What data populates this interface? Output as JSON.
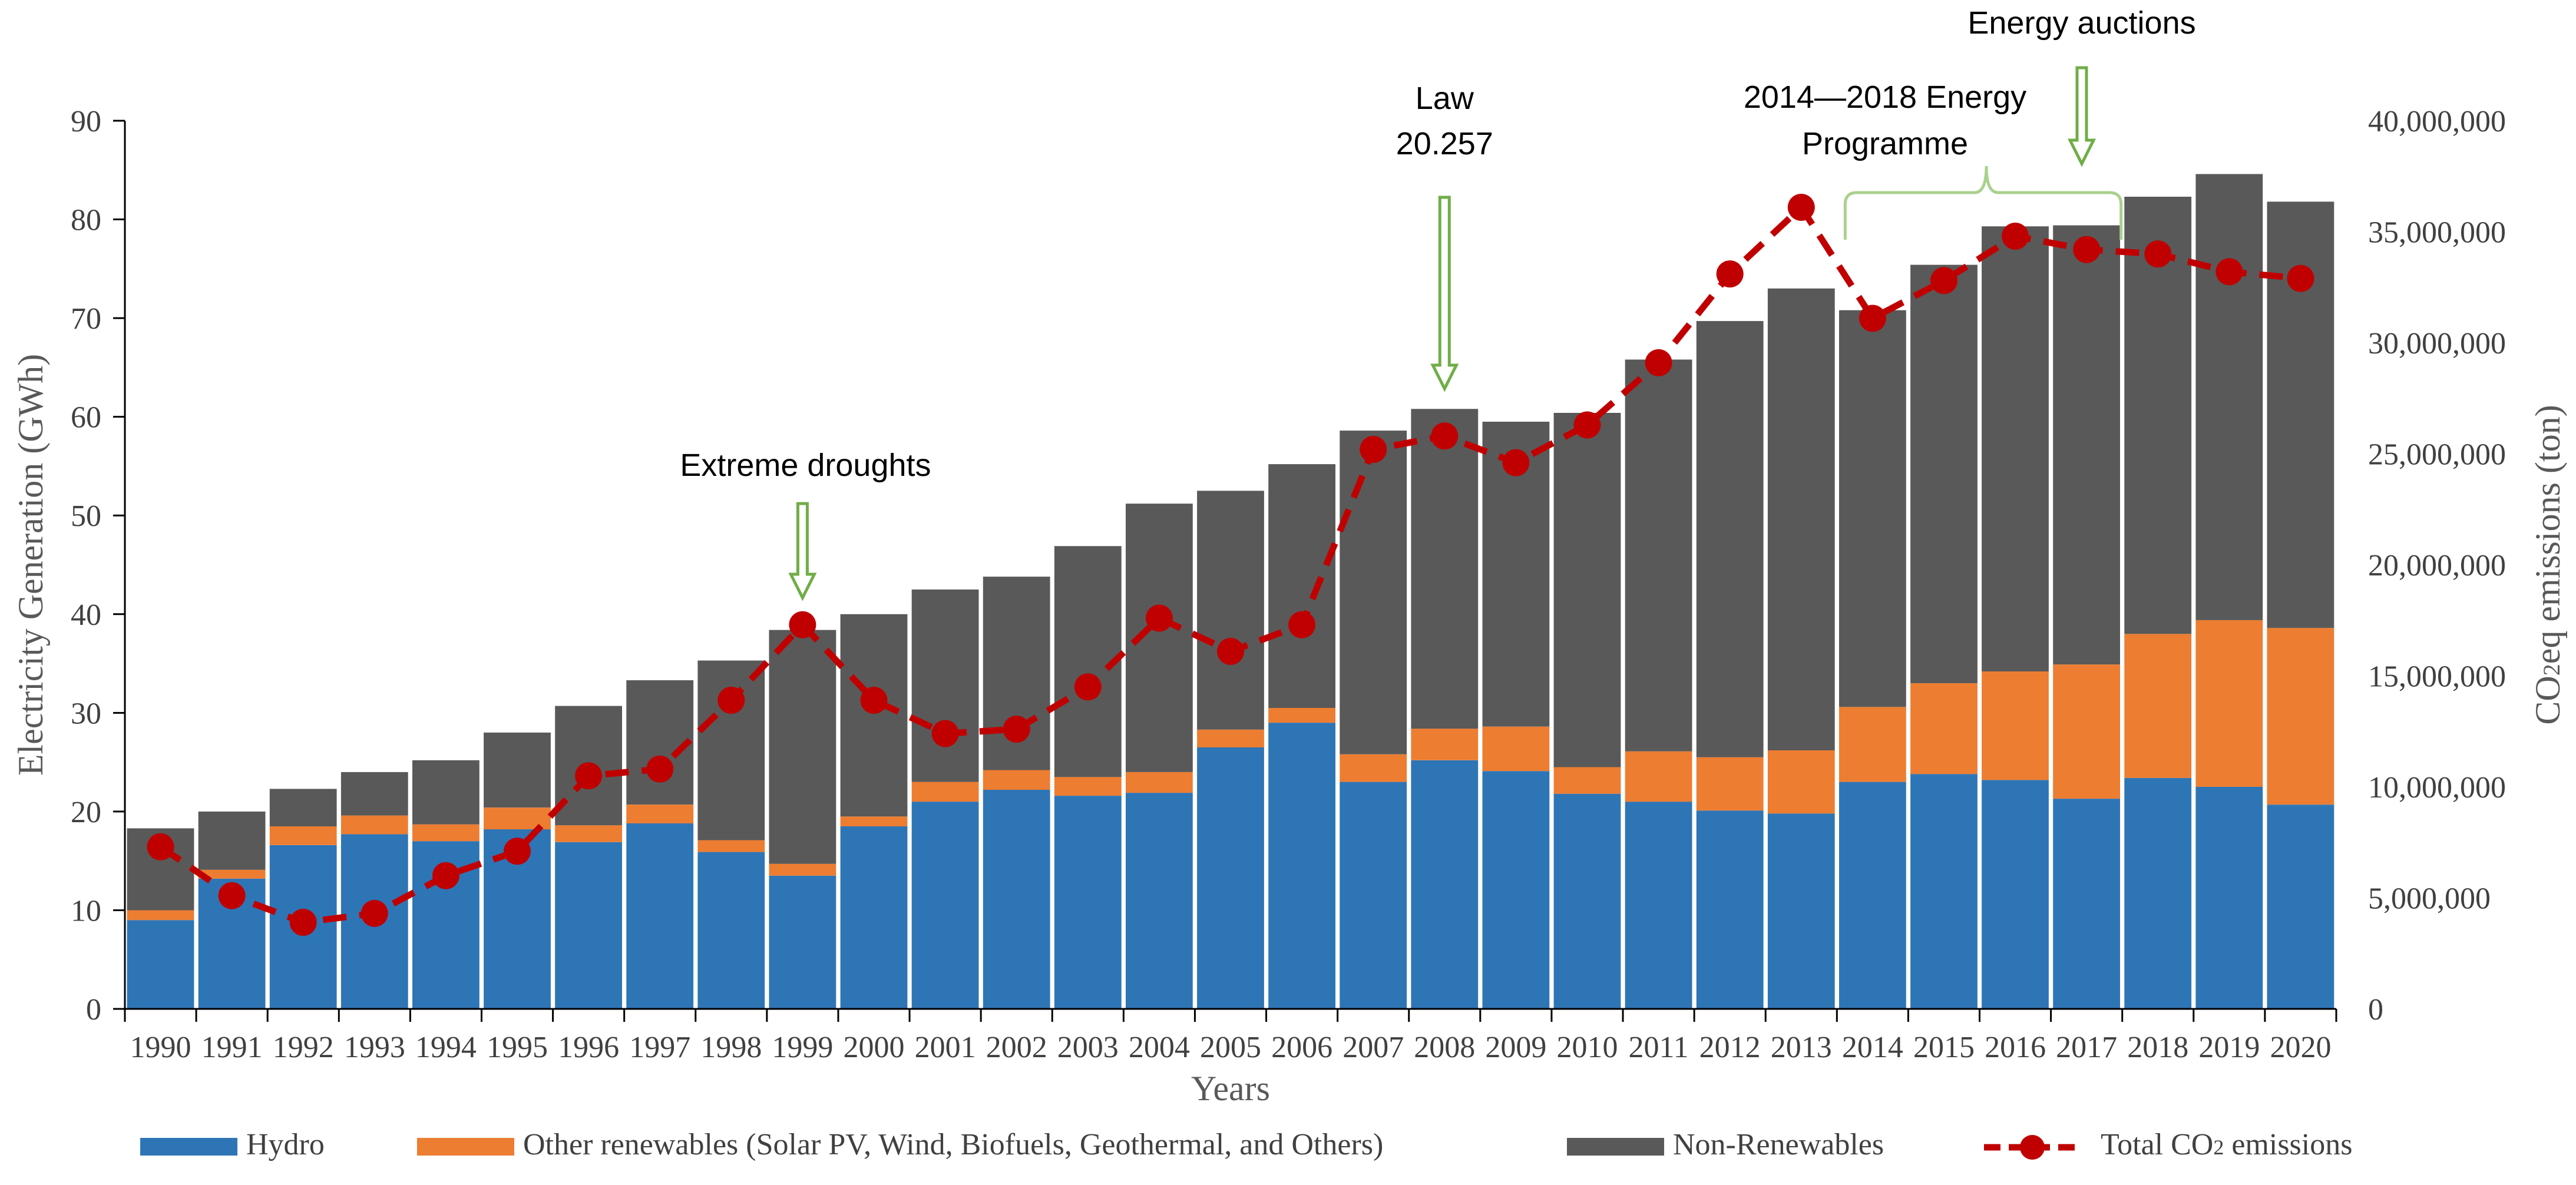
{
  "chart_data": {
    "type": "bar",
    "stacked": true,
    "categories": [
      "1990",
      "1991",
      "1992",
      "1993",
      "1994",
      "1995",
      "1996",
      "1997",
      "1998",
      "1999",
      "2000",
      "2001",
      "2002",
      "2003",
      "2004",
      "2005",
      "2006",
      "2007",
      "2008",
      "2009",
      "2010",
      "2011",
      "2012",
      "2013",
      "2014",
      "2015",
      "2016",
      "2017",
      "2018",
      "2019",
      "2020"
    ],
    "series": [
      {
        "name": "Hydro",
        "color": "#2E75B6",
        "values": [
          9.0,
          13.2,
          16.6,
          17.7,
          17.0,
          18.2,
          16.9,
          18.8,
          15.9,
          13.5,
          18.5,
          21.0,
          22.2,
          21.6,
          21.9,
          26.5,
          29.0,
          23.0,
          25.2,
          24.1,
          21.8,
          21.0,
          20.1,
          19.8,
          23.0,
          23.8,
          23.2,
          21.3,
          23.4,
          22.5,
          20.7
        ]
      },
      {
        "name": "Other renewables (Solar PV, Wind, Biofuels, Geothermal, and Others)",
        "color": "#ED7D31",
        "values": [
          1.0,
          0.9,
          1.9,
          1.9,
          1.7,
          2.2,
          1.7,
          1.9,
          1.2,
          1.2,
          1.0,
          2.0,
          2.0,
          1.9,
          2.1,
          1.8,
          1.5,
          2.8,
          3.2,
          4.5,
          2.7,
          5.1,
          5.4,
          6.4,
          7.6,
          9.2,
          11.0,
          13.6,
          14.6,
          16.9,
          17.9
        ]
      },
      {
        "name": "Non-Renewables",
        "color": "#595959",
        "values": [
          8.3,
          5.9,
          3.8,
          4.4,
          6.5,
          7.6,
          12.1,
          12.6,
          18.2,
          23.7,
          20.5,
          19.5,
          19.6,
          23.4,
          27.2,
          24.2,
          24.7,
          32.8,
          32.4,
          30.9,
          35.9,
          39.7,
          44.2,
          46.8,
          40.2,
          42.4,
          45.1,
          44.5,
          44.3,
          45.2,
          43.2
        ]
      }
    ],
    "line": {
      "name": "Total CO2 emissions",
      "color": "#C00000",
      "values": [
        7300000,
        5100000,
        3900000,
        4300000,
        6000000,
        7100000,
        10500000,
        10800000,
        13900000,
        17300000,
        13900000,
        12400000,
        12600000,
        14500000,
        17600000,
        16100000,
        17300000,
        25200000,
        25800000,
        24600000,
        26300000,
        29100000,
        33100000,
        36100000,
        31100000,
        32800000,
        34800000,
        34200000,
        34000000,
        33200000,
        32900000
      ]
    },
    "title": "",
    "xlabel": "Years",
    "ylabel_left": "Electricity Generation (GWh)",
    "ylabel_right_parts": [
      "CO",
      "2",
      "eq emissions (ton)"
    ],
    "ylim_left": [
      0,
      90
    ],
    "yticks_left": [
      "0",
      "10",
      "20",
      "30",
      "40",
      "50",
      "60",
      "70",
      "80",
      "90"
    ],
    "ylim_right": [
      0,
      40000000
    ],
    "yticks_right": [
      "0",
      "5,000,000",
      "10,000,000",
      "15,000,000",
      "20,000,000",
      "25,000,000",
      "30,000,000",
      "35,000,000",
      "40,000,000"
    ],
    "grid": false,
    "legend_position": "bottom",
    "legend": [
      {
        "name": "Hydro",
        "kind": "bar",
        "color": "#2E75B6"
      },
      {
        "name": "Other renewables (Solar PV, Wind, Biofuels, Geothermal, and Others)",
        "kind": "bar",
        "color": "#ED7D31"
      },
      {
        "name": "Non-Renewables",
        "kind": "bar",
        "color": "#595959"
      },
      {
        "name_parts": [
          "Total CO",
          "2",
          " emissions"
        ],
        "kind": "line",
        "color": "#C00000"
      }
    ],
    "annotations": {
      "droughts": {
        "text": "Extreme droughts",
        "year": "1999"
      },
      "law": {
        "lines": [
          "Law",
          "20.257"
        ],
        "year": "2008"
      },
      "programme": {
        "lines": [
          "2014—2018 Energy",
          "Programme"
        ],
        "from_year": "2014",
        "to_year": "2017"
      },
      "auctions": {
        "text": "Energy auctions",
        "year": "2017"
      },
      "arrow_color": "#70AD47"
    }
  }
}
